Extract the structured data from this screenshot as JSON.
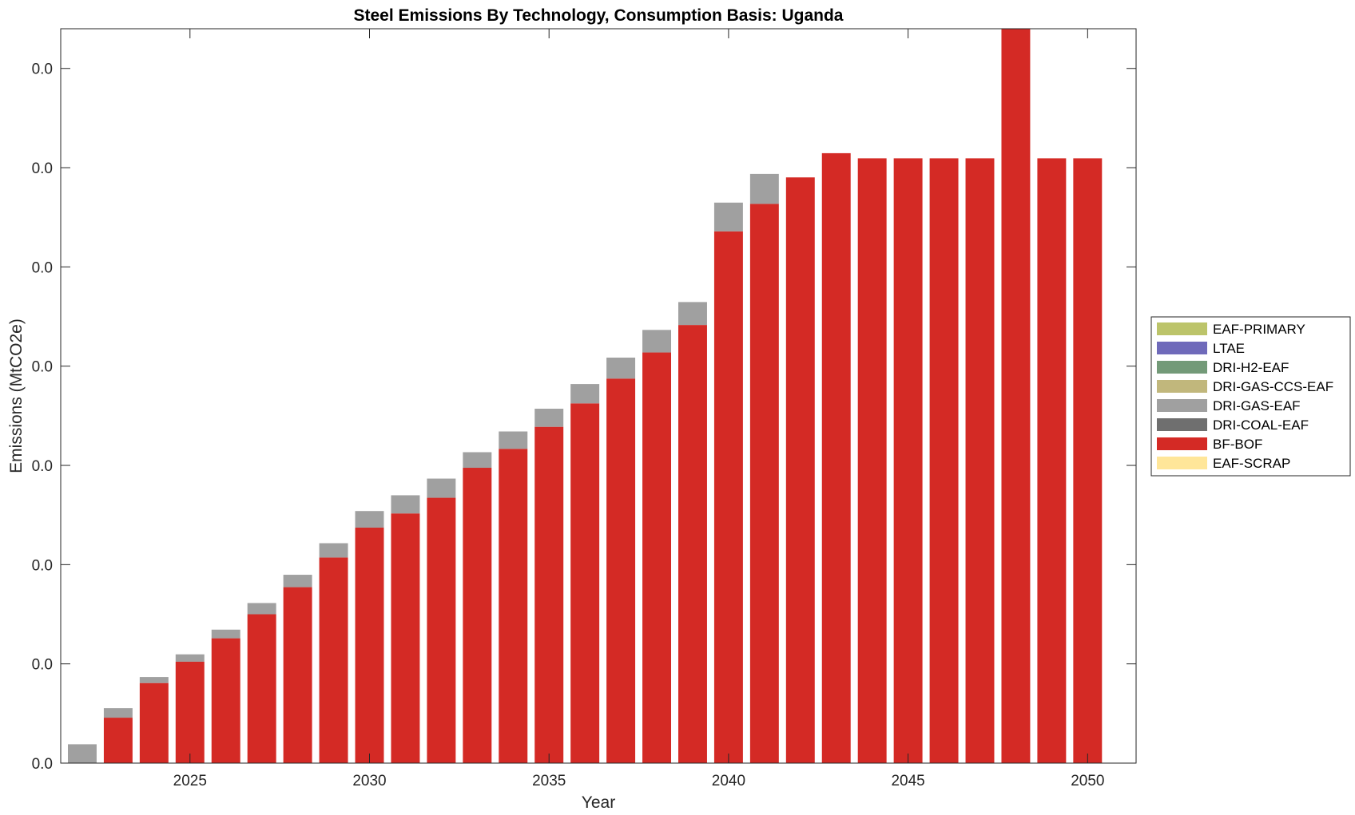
{
  "chart_data": {
    "type": "bar",
    "stacked": true,
    "title": "Steel Emissions By Technology, Consumption Basis: Uganda",
    "xlabel": "Year",
    "ylabel": "Emissions (MtCO2e)",
    "x": [
      2022,
      2023,
      2024,
      2025,
      2026,
      2027,
      2028,
      2029,
      2030,
      2031,
      2032,
      2033,
      2034,
      2035,
      2036,
      2037,
      2038,
      2039,
      2040,
      2041,
      2042,
      2043,
      2044,
      2045,
      2046,
      2047,
      2048,
      2049,
      2050
    ],
    "xlim": [
      2021.4,
      2051.35
    ],
    "ylim": [
      0,
      0.0074
    ],
    "xticks": [
      2025,
      2030,
      2035,
      2040,
      2045,
      2050
    ],
    "yticks": [
      0,
      0.001,
      0.002,
      0.003,
      0.004,
      0.005,
      0.006,
      0.007
    ],
    "ytick_labels": [
      "0.0",
      "0.0",
      "0.0",
      "0.0",
      "0.0",
      "0.0",
      "0.0",
      "0.0"
    ],
    "series": [
      {
        "name": "EAF-SCRAP",
        "color": "#FFE699",
        "values": [
          0,
          0,
          0,
          0,
          0,
          0,
          0,
          0,
          0,
          0,
          0,
          0,
          0,
          0,
          0,
          0,
          0,
          0,
          0,
          0,
          0,
          0,
          0,
          0,
          0,
          0,
          0,
          0,
          0
        ]
      },
      {
        "name": "BF-BOF",
        "color": "#D42A25",
        "values": [
          0,
          0.000458,
          0.000807,
          0.001022,
          0.001258,
          0.0015,
          0.001773,
          0.002072,
          0.002373,
          0.002516,
          0.002674,
          0.002976,
          0.003167,
          0.003389,
          0.003625,
          0.003875,
          0.004138,
          0.004415,
          0.005358,
          0.005635,
          0.005902,
          0.006146,
          0.006094,
          0.006094,
          0.006094,
          0.006094,
          0.0074,
          0.006094,
          0.006094
        ]
      },
      {
        "name": "DRI-COAL-EAF",
        "color": "#6F6F6F",
        "values": [
          0,
          0,
          0,
          0,
          0,
          0,
          0,
          0,
          0,
          0,
          0,
          0,
          0,
          0,
          0,
          0,
          0,
          0,
          0,
          0,
          0,
          0,
          0,
          0,
          0,
          0,
          0,
          0,
          0
        ]
      },
      {
        "name": "DRI-GAS-EAF",
        "color": "#A0A0A0",
        "values": [
          0.00019,
          9.6e-05,
          6.1e-05,
          7.4e-05,
          8.7e-05,
          0.000113,
          0.000125,
          0.000144,
          0.000167,
          0.000183,
          0.000193,
          0.000157,
          0.000175,
          0.000182,
          0.000195,
          0.000211,
          0.000227,
          0.000231,
          0.00029,
          0.000302,
          0,
          0,
          0,
          0,
          0,
          0,
          0,
          0,
          0
        ]
      },
      {
        "name": "DRI-GAS-CCS-EAF",
        "color": "#C1B77C",
        "values": [
          0,
          0,
          0,
          0,
          0,
          0,
          0,
          0,
          0,
          0,
          0,
          0,
          0,
          0,
          0,
          0,
          0,
          0,
          0,
          0,
          0,
          0,
          0,
          0,
          0,
          0,
          0,
          0,
          0
        ]
      },
      {
        "name": "DRI-H2-EAF",
        "color": "#739A78",
        "values": [
          0,
          0,
          0,
          0,
          0,
          0,
          0,
          0,
          0,
          0,
          0,
          0,
          0,
          0,
          0,
          0,
          0,
          0,
          0,
          0,
          0,
          0,
          0,
          0,
          0,
          0,
          0,
          0,
          0
        ]
      },
      {
        "name": "LTAE",
        "color": "#6F6ABA",
        "values": [
          0,
          0,
          0,
          0,
          0,
          0,
          0,
          0,
          0,
          0,
          0,
          0,
          0,
          0,
          0,
          0,
          0,
          0,
          0,
          0,
          0,
          0,
          0,
          0,
          0,
          0,
          0,
          0,
          0
        ]
      },
      {
        "name": "EAF-PRIMARY",
        "color": "#BCC46A",
        "values": [
          0,
          0,
          0,
          0,
          0,
          0,
          0,
          0,
          0,
          0,
          0,
          0,
          0,
          0,
          0,
          0,
          0,
          0,
          0,
          0,
          0,
          0,
          0,
          0,
          0,
          0,
          0,
          0,
          0
        ]
      }
    ],
    "legend": {
      "placement": "outside-right",
      "entries": [
        "EAF-PRIMARY",
        "LTAE",
        "DRI-H2-EAF",
        "DRI-GAS-CCS-EAF",
        "DRI-GAS-EAF",
        "DRI-COAL-EAF",
        "BF-BOF",
        "EAF-SCRAP"
      ]
    },
    "grid": false
  }
}
